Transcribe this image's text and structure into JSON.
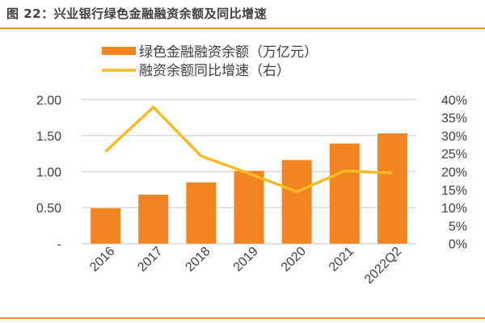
{
  "title": "图 22：兴业银行绿色金融融资余额及同比增速",
  "chart_data": {
    "type": "bar+line",
    "categories": [
      "2016",
      "2017",
      "2018",
      "2019",
      "2020",
      "2021",
      "2022Q2"
    ],
    "series": [
      {
        "name": "绿色金融融资余额（万亿元）",
        "type": "bar",
        "axis": "left",
        "color": "#f38422",
        "values": [
          0.49,
          0.68,
          0.85,
          1.01,
          1.16,
          1.39,
          1.53
        ]
      },
      {
        "name": "融资余额同比增速（右）",
        "type": "line",
        "axis": "right",
        "color": "#fbb924",
        "values": [
          25.6,
          37.9,
          24.3,
          19.5,
          14.4,
          20.2,
          19.6
        ]
      }
    ],
    "y_left": {
      "range": [
        0,
        2.0
      ],
      "ticks": [
        "-",
        "0.50",
        "1.00",
        "1.50",
        "2.00"
      ]
    },
    "y_right": {
      "range": [
        0,
        40
      ],
      "ticks": [
        "0%",
        "5%",
        "10%",
        "15%",
        "20%",
        "25%",
        "30%",
        "35%",
        "40%"
      ]
    },
    "grid": true,
    "legend_placement": "top-center"
  },
  "colors": {
    "accent": "#f08b2c",
    "bar": "#f38422",
    "line": "#fbb924",
    "grid": "#d9d9d9"
  }
}
